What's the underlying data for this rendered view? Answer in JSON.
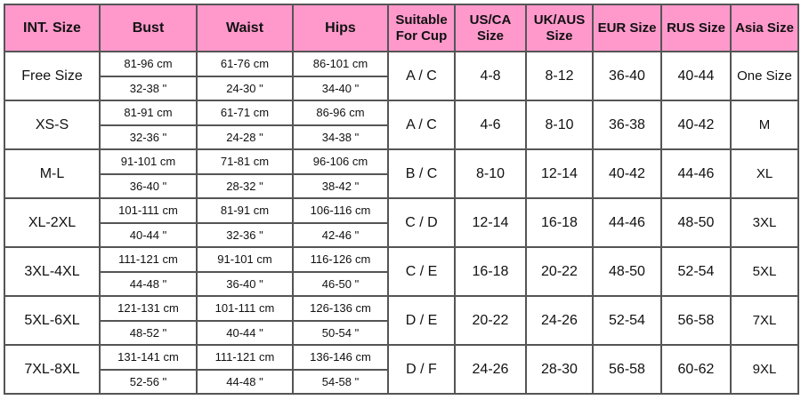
{
  "headers": [
    "INT. Size",
    "Bust",
    "Waist",
    "Hips",
    "Suitable For Cup",
    "US/CA Size",
    "UK/AUS Size",
    "EUR Size",
    "RUS Size",
    "Asia Size"
  ],
  "rows": [
    {
      "int": "Free Size",
      "bust_cm": "81-96 cm",
      "bust_in": "32-38 \"",
      "waist_cm": "61-76 cm",
      "waist_in": "24-30 \"",
      "hips_cm": "86-101 cm",
      "hips_in": "34-40 \"",
      "cup": "A / C",
      "us": "4-8",
      "uk": "8-12",
      "eur": "36-40",
      "rus": "40-44",
      "asia": "One Size"
    },
    {
      "int": "XS-S",
      "bust_cm": "81-91 cm",
      "bust_in": "32-36 \"",
      "waist_cm": "61-71 cm",
      "waist_in": "24-28 \"",
      "hips_cm": "86-96 cm",
      "hips_in": "34-38 \"",
      "cup": "A / C",
      "us": "4-6",
      "uk": "8-10",
      "eur": "36-38",
      "rus": "40-42",
      "asia": "M"
    },
    {
      "int": "M-L",
      "bust_cm": "91-101 cm",
      "bust_in": "36-40 \"",
      "waist_cm": "71-81 cm",
      "waist_in": "28-32 \"",
      "hips_cm": "96-106 cm",
      "hips_in": "38-42 \"",
      "cup": "B / C",
      "us": "8-10",
      "uk": "12-14",
      "eur": "40-42",
      "rus": "44-46",
      "asia": "XL"
    },
    {
      "int": "XL-2XL",
      "bust_cm": "101-111 cm",
      "bust_in": "40-44 \"",
      "waist_cm": "81-91 cm",
      "waist_in": "32-36 \"",
      "hips_cm": "106-116 cm",
      "hips_in": "42-46 \"",
      "cup": "C / D",
      "us": "12-14",
      "uk": "16-18",
      "eur": "44-46",
      "rus": "48-50",
      "asia": "3XL"
    },
    {
      "int": "3XL-4XL",
      "bust_cm": "111-121 cm",
      "bust_in": "44-48 \"",
      "waist_cm": "91-101 cm",
      "waist_in": "36-40 \"",
      "hips_cm": "116-126 cm",
      "hips_in": "46-50 \"",
      "cup": "C / E",
      "us": "16-18",
      "uk": "20-22",
      "eur": "48-50",
      "rus": "52-54",
      "asia": "5XL"
    },
    {
      "int": "5XL-6XL",
      "bust_cm": "121-131 cm",
      "bust_in": "48-52 \"",
      "waist_cm": "101-111 cm",
      "waist_in": "40-44 \"",
      "hips_cm": "126-136 cm",
      "hips_in": "50-54 \"",
      "cup": "D / E",
      "us": "20-22",
      "uk": "24-26",
      "eur": "52-54",
      "rus": "56-58",
      "asia": "7XL"
    },
    {
      "int": "7XL-8XL",
      "bust_cm": "131-141 cm",
      "bust_in": "52-56 \"",
      "waist_cm": "111-121 cm",
      "waist_in": "44-48 \"",
      "hips_cm": "136-146 cm",
      "hips_in": "54-58 \"",
      "cup": "D / F",
      "us": "24-26",
      "uk": "28-30",
      "eur": "56-58",
      "rus": "60-62",
      "asia": "9XL"
    }
  ],
  "colors": {
    "header_bg": "#ff99cc",
    "border": "#555555"
  }
}
